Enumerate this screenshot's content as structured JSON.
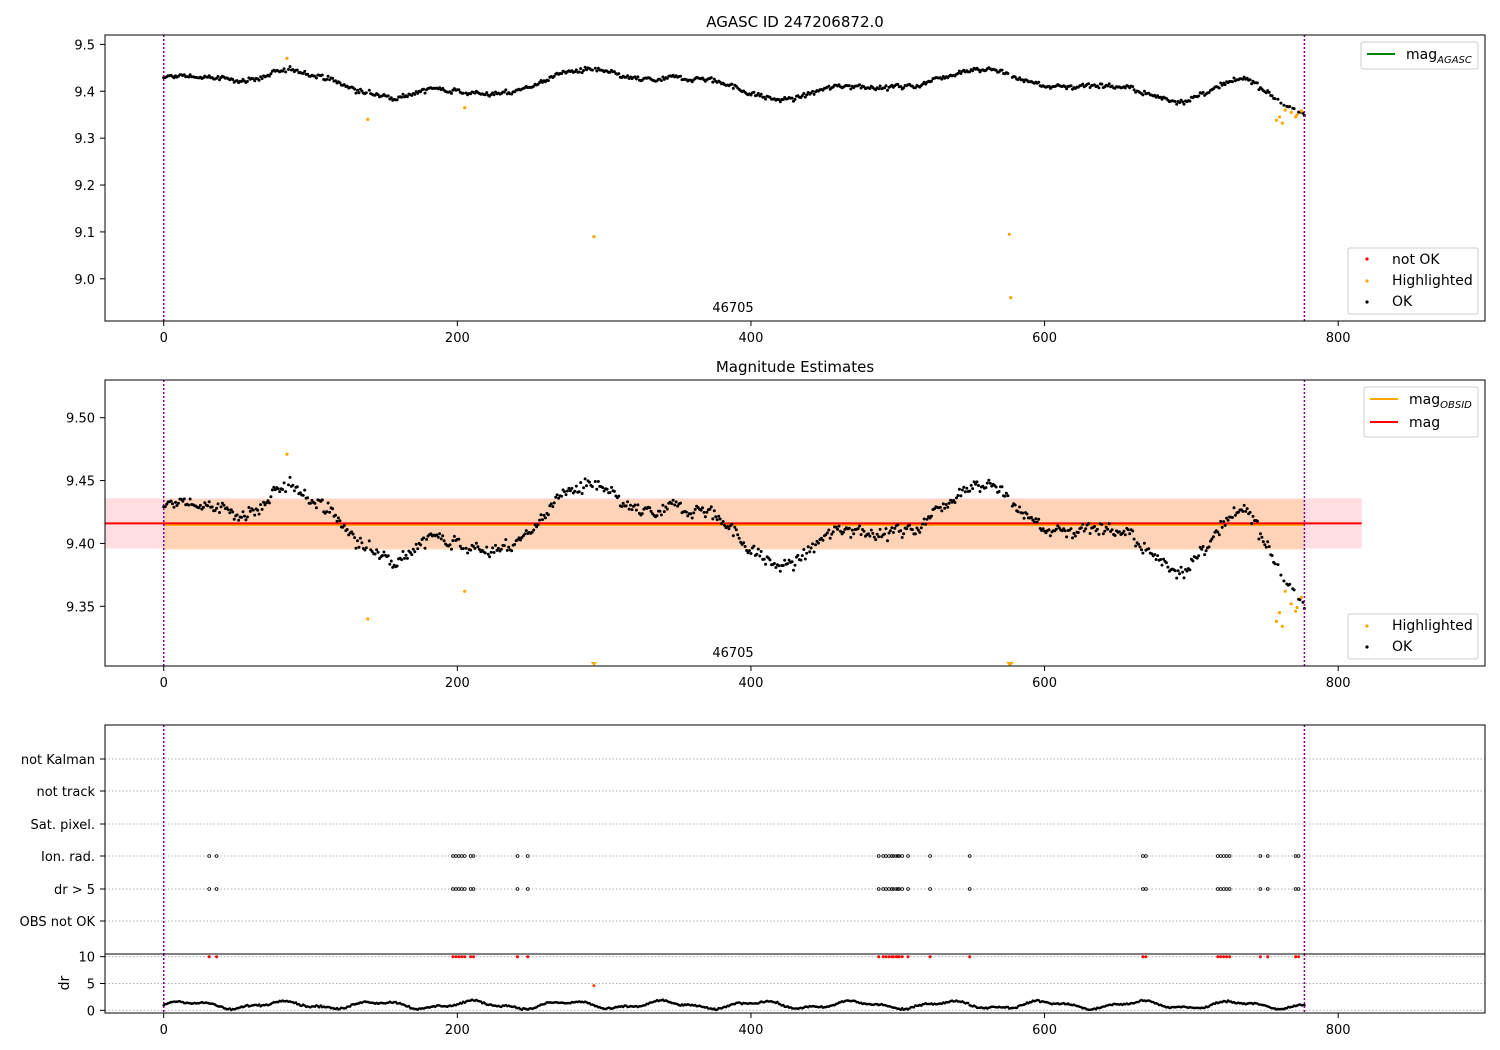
{
  "chart_data": [
    {
      "type": "scatter",
      "title": "AGASC ID 247206872.0",
      "xlabel": "",
      "ylabel": "",
      "xlim": [
        -40,
        900
      ],
      "ylim": [
        8.91,
        9.52
      ],
      "xticks": [
        0,
        200,
        400,
        600,
        800
      ],
      "yticks": [
        9.0,
        9.1,
        9.2,
        9.3,
        9.4,
        9.5
      ],
      "ytick_labels": [
        "9.0",
        "9.1",
        "9.2",
        "9.3",
        "9.4",
        "9.5"
      ],
      "obsid_annotation": {
        "label": "46705",
        "x": 388
      },
      "obs_boundaries": [
        0,
        777
      ],
      "lines_legend": [
        {
          "name": "mag_AGASC",
          "text": "mag",
          "sub": "AGASC",
          "color": "#008000"
        }
      ],
      "points_legend": [
        {
          "name": "not OK",
          "color": "#ff0000"
        },
        {
          "name": "Highlighted",
          "color": "#ffa500"
        },
        {
          "name": "OK",
          "color": "#000000"
        }
      ],
      "highlighted_points": [
        [
          84,
          9.47
        ],
        [
          139,
          9.34
        ],
        [
          205,
          9.365
        ],
        [
          293,
          9.09
        ],
        [
          576,
          9.095
        ],
        [
          577,
          8.96
        ],
        [
          758,
          9.338
        ],
        [
          760,
          9.345
        ],
        [
          762,
          9.332
        ],
        [
          764,
          9.36
        ],
        [
          768,
          9.355
        ],
        [
          771,
          9.345
        ],
        [
          772,
          9.35
        ],
        [
          775,
          9.358
        ]
      ],
      "grid": false,
      "legend_position": [
        "upper right",
        "lower right"
      ]
    },
    {
      "type": "scatter",
      "title": "Magnitude Estimates",
      "xlabel": "",
      "ylabel": "",
      "xlim": [
        -40,
        900
      ],
      "ylim": [
        9.3025,
        9.53
      ],
      "xticks": [
        0,
        200,
        400,
        600,
        800
      ],
      "yticks": [
        9.35,
        9.4,
        9.45,
        9.5
      ],
      "ytick_labels": [
        "9.35",
        "9.40",
        "9.45",
        "9.50"
      ],
      "obsid_annotation": {
        "label": "46705",
        "x": 388
      },
      "obs_boundaries": [
        0,
        777
      ],
      "mag_mean": 9.416,
      "mag_band": [
        9.396,
        9.436
      ],
      "mag_obsid": 9.415,
      "mag_obsid_band": [
        9.395,
        9.435
      ],
      "mag_band_x": [
        -40,
        816
      ],
      "mag_obsid_band_x": [
        0,
        777
      ],
      "lines_legend": [
        {
          "name": "mag_OBSID",
          "text": "mag",
          "sub": "OBSID",
          "color": "#ffa500"
        },
        {
          "name": "mag",
          "text": "mag",
          "sub": "",
          "color": "#ff0000"
        }
      ],
      "points_legend": [
        {
          "name": "Highlighted",
          "color": "#ffa500"
        },
        {
          "name": "OK",
          "color": "#000000"
        }
      ],
      "highlighted_points": [
        [
          84,
          9.471
        ],
        [
          139,
          9.34
        ],
        [
          205,
          9.362
        ],
        [
          758,
          9.338
        ],
        [
          760,
          9.345
        ],
        [
          762,
          9.334
        ],
        [
          764,
          9.362
        ],
        [
          768,
          9.352
        ],
        [
          771,
          9.346
        ],
        [
          772,
          9.349
        ],
        [
          775,
          9.357
        ]
      ],
      "clipped_markers": [
        [
          293,
          9.3025
        ],
        [
          576,
          9.3025
        ],
        [
          577,
          9.3025
        ]
      ],
      "grid": false,
      "legend_position": [
        "upper right",
        "lower right"
      ]
    },
    {
      "type": "scatter",
      "title": "",
      "xlabel": "",
      "ylabel": "",
      "flag_categories": [
        "not Kalman",
        "not track",
        "Sat. pixel.",
        "Ion. rad.",
        "dr > 5",
        "OBS not OK"
      ],
      "flag_events_x": [
        31,
        36,
        197,
        199,
        201,
        203,
        205,
        209,
        211,
        241,
        248,
        487,
        490,
        492,
        494,
        496,
        497,
        499,
        500,
        501,
        503,
        507,
        522,
        549,
        667,
        669,
        718,
        720,
        722,
        724,
        726,
        747,
        752,
        771,
        773
      ],
      "xlim": [
        -40,
        900
      ],
      "xticks": [
        0,
        200,
        400,
        600,
        800
      ],
      "obs_boundaries": [
        0,
        777
      ],
      "grid": "horizontal dotted"
    },
    {
      "type": "scatter",
      "title": "",
      "xlabel": "",
      "ylabel": "dr",
      "xlim": [
        -40,
        900
      ],
      "ylim": [
        -0.5,
        10.5
      ],
      "yticks": [
        0,
        5,
        10
      ],
      "ytick_labels": [
        "0",
        "5",
        "10"
      ],
      "xticks": [
        0,
        200,
        400,
        600,
        800
      ],
      "xtick_labels": [
        "0",
        "200",
        "400",
        "600",
        "800"
      ],
      "dr_capped_value": 10,
      "dr_outlier": [
        293,
        4.6
      ],
      "obs_boundaries": [
        0,
        777
      ],
      "grid": "horizontal dotted"
    }
  ]
}
